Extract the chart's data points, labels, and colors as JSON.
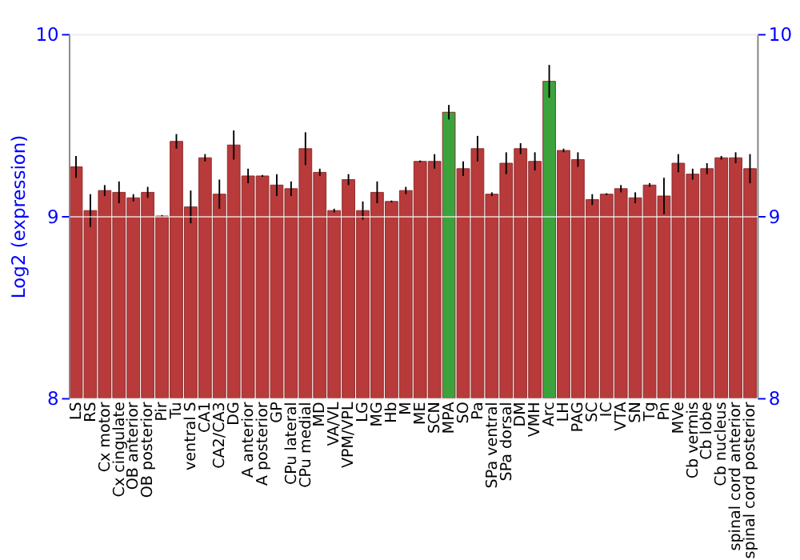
{
  "chart_data": {
    "type": "bar",
    "ylabel": "Log2 (expression)",
    "categories": [
      "LS",
      "RS",
      "Cx motor",
      "Cx cingulate",
      "OB anterior",
      "OB posterior",
      "Pir",
      "Tu",
      "ventral S",
      "CA1",
      "CA2/CA3",
      "DG",
      "A anterior",
      "A posterior",
      "GP",
      "CPu lateral",
      "CPu medial",
      "MD",
      "VA/VL",
      "VPM/VPL",
      "LG",
      "MG",
      "Hb",
      "M",
      "ME",
      "SCN",
      "MPA",
      "SO",
      "Pa",
      "SPa ventral",
      "SPa dorsal",
      "DM",
      "VMH",
      "Arc",
      "LH",
      "PAG",
      "SC",
      "IC",
      "VTA",
      "SN",
      "Tg",
      "Pn",
      "MVe",
      "Cb vermis",
      "Cb lobe",
      "Cb nucleus",
      "spinal cord anterior",
      "spinal cord posterior"
    ],
    "values": [
      9.27,
      9.03,
      9.14,
      9.13,
      9.1,
      9.13,
      9.0,
      9.41,
      9.05,
      9.32,
      9.12,
      9.39,
      9.22,
      9.22,
      9.17,
      9.15,
      9.37,
      9.24,
      9.03,
      9.2,
      9.03,
      9.13,
      9.08,
      9.14,
      9.3,
      9.3,
      9.57,
      9.26,
      9.37,
      9.12,
      9.29,
      9.37,
      9.3,
      9.74,
      9.36,
      9.31,
      9.09,
      9.12,
      9.15,
      9.1,
      9.17,
      9.11,
      9.29,
      9.23,
      9.26,
      9.32,
      9.32,
      9.26
    ],
    "errors": [
      0.06,
      0.09,
      0.03,
      0.06,
      0.02,
      0.03,
      0.005,
      0.04,
      0.09,
      0.02,
      0.08,
      0.08,
      0.04,
      0.005,
      0.06,
      0.04,
      0.09,
      0.02,
      0.01,
      0.03,
      0.05,
      0.06,
      0.005,
      0.02,
      0.005,
      0.04,
      0.04,
      0.04,
      0.07,
      0.01,
      0.06,
      0.03,
      0.05,
      0.09,
      0.01,
      0.04,
      0.03,
      0.005,
      0.02,
      0.03,
      0.01,
      0.1,
      0.05,
      0.03,
      0.03,
      0.01,
      0.03,
      0.08
    ],
    "colors": [
      "#b83a3a",
      "#b83a3a",
      "#b83a3a",
      "#b83a3a",
      "#b83a3a",
      "#b83a3a",
      "#b83a3a",
      "#b83a3a",
      "#b83a3a",
      "#b83a3a",
      "#b83a3a",
      "#b83a3a",
      "#b83a3a",
      "#b83a3a",
      "#b83a3a",
      "#b83a3a",
      "#b83a3a",
      "#b83a3a",
      "#b83a3a",
      "#b83a3a",
      "#b83a3a",
      "#b83a3a",
      "#b83a3a",
      "#b83a3a",
      "#b83a3a",
      "#b83a3a",
      "#3ca33c",
      "#b83a3a",
      "#b83a3a",
      "#b83a3a",
      "#b83a3a",
      "#b83a3a",
      "#b83a3a",
      "#3ca33c",
      "#b83a3a",
      "#b83a3a",
      "#b83a3a",
      "#b83a3a",
      "#b83a3a",
      "#b83a3a",
      "#b83a3a",
      "#b83a3a",
      "#b83a3a",
      "#b83a3a",
      "#b83a3a",
      "#b83a3a",
      "#b83a3a",
      "#b83a3a"
    ],
    "ylim": [
      8,
      10
    ],
    "yticks": [
      8,
      9,
      10
    ],
    "y2lim": [
      8,
      10
    ],
    "y2ticks": [
      8,
      9,
      10
    ],
    "grid": "y"
  }
}
